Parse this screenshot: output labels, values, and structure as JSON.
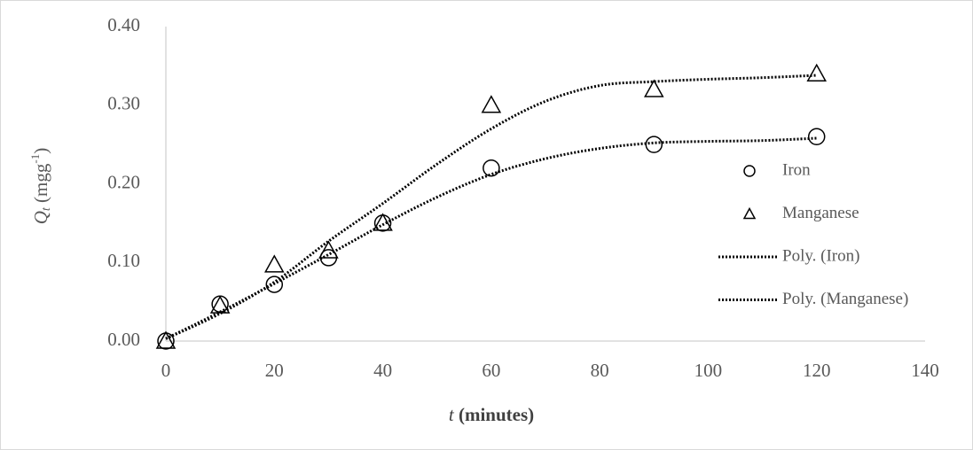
{
  "chart_data": {
    "type": "scatter",
    "y_label": {
      "symbol": "Q",
      "subscript": "t",
      "unit": " (mgg",
      "superscript": "-1",
      "close": ")"
    },
    "x_label": {
      "symbol": "t",
      "unit": " (minutes)"
    },
    "xlim": [
      0,
      140
    ],
    "xticks": [
      0,
      20,
      40,
      60,
      80,
      100,
      120,
      140
    ],
    "ylim": [
      0,
      0.4
    ],
    "yticks": [
      {
        "value": 0,
        "label": "0.00"
      },
      {
        "value": 0.1,
        "label": "0.10"
      },
      {
        "value": 0.2,
        "label": "0.20"
      },
      {
        "value": 0.3,
        "label": "0.30"
      },
      {
        "value": 0.4,
        "label": "0.40"
      }
    ],
    "grid": false,
    "legend": "right",
    "series": [
      {
        "name": "Iron",
        "marker": "circle",
        "color": "#000000",
        "x": [
          0,
          10,
          20,
          30,
          40,
          60,
          90,
          120
        ],
        "values": [
          0,
          0.047,
          0.072,
          0.106,
          0.15,
          0.22,
          0.25,
          0.26
        ]
      },
      {
        "name": "Manganese",
        "marker": "triangle",
        "color": "#000000",
        "x": [
          0,
          10,
          20,
          30,
          40,
          60,
          90,
          120
        ],
        "values": [
          0,
          0.045,
          0.097,
          0.115,
          0.15,
          0.3,
          0.32,
          0.34
        ]
      },
      {
        "name": "Poly. (Iron)",
        "marker": "dotted-line",
        "color": "#000000",
        "x": [
          0,
          10,
          20,
          30,
          40,
          50,
          60,
          70,
          80,
          90,
          100,
          110,
          120
        ],
        "values": [
          0.003,
          0.037,
          0.073,
          0.11,
          0.148,
          0.183,
          0.212,
          0.232,
          0.245,
          0.252,
          0.254,
          0.255,
          0.258
        ]
      },
      {
        "name": "Poly. (Manganese)",
        "marker": "dotted-line",
        "color": "#000000",
        "x": [
          0,
          10,
          20,
          30,
          40,
          50,
          60,
          70,
          80,
          90,
          100,
          110,
          120
        ],
        "values": [
          0.003,
          0.035,
          0.075,
          0.127,
          0.175,
          0.225,
          0.27,
          0.305,
          0.325,
          0.33,
          0.333,
          0.335,
          0.338
        ]
      }
    ]
  }
}
